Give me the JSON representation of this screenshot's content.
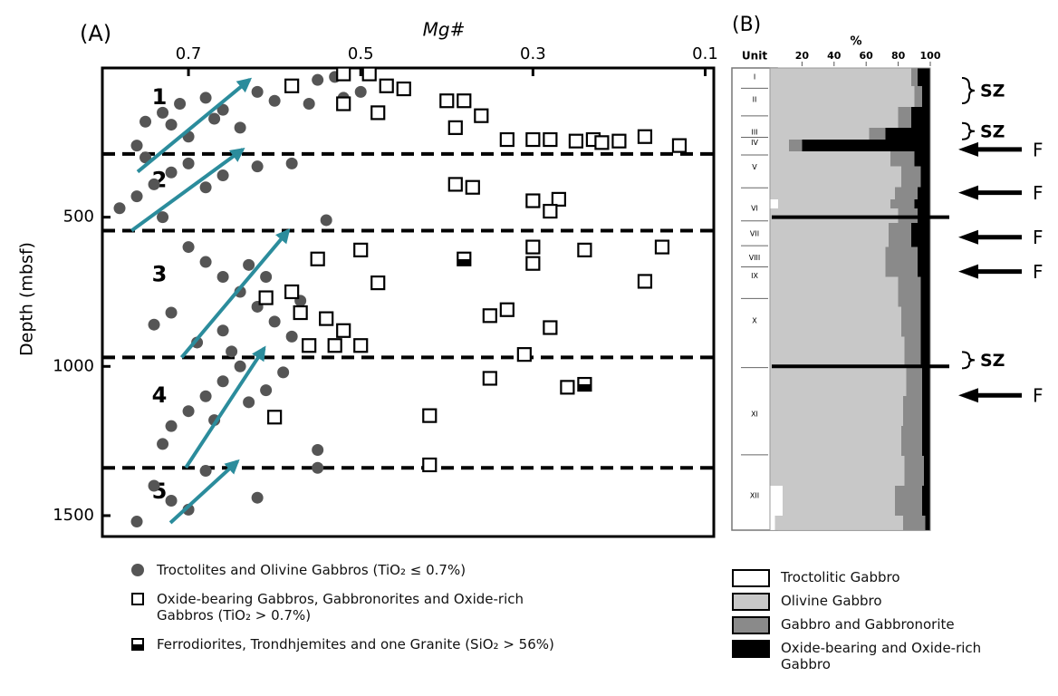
{
  "chart_data": [
    {
      "type": "scatter",
      "panel": "(A)",
      "xlabel": "Mg#",
      "ylabel": "Depth (mbsf)",
      "xlim": [
        0.8,
        0.09
      ],
      "xticks": [
        0.7,
        0.5,
        0.3,
        0.1
      ],
      "ylim": [
        0,
        1570
      ],
      "yticks": [
        500,
        1000,
        1500
      ],
      "boundaries": [
        288,
        545,
        970,
        1340
      ],
      "unit_labels": [
        "1",
        "2",
        "3",
        "4",
        "5"
      ],
      "trends": [
        {
          "x": [
            0.759,
            0.629
          ],
          "depth": [
            348,
            39
          ]
        },
        {
          "x": [
            0.766,
            0.637
          ],
          "depth": [
            545,
            273
          ]
        },
        {
          "x": [
            0.708,
            0.584
          ],
          "depth": [
            970,
            545
          ]
        },
        {
          "x": [
            0.703,
            0.612
          ],
          "depth": [
            1339,
            939
          ]
        },
        {
          "x": [
            0.721,
            0.643
          ],
          "depth": [
            1524,
            1318
          ]
        }
      ],
      "trend_color": "#2b8c9c",
      "series": [
        {
          "name": "Troctolites and Olivine Gabbros (TiO₂ ≤ 0.7%)",
          "marker": "circle",
          "color": "#555555",
          "x": [
            0.75,
            0.73,
            0.71,
            0.68,
            0.66,
            0.62,
            0.58,
            0.55,
            0.53,
            0.6,
            0.64,
            0.7,
            0.76,
            0.72,
            0.67,
            0.56,
            0.52,
            0.5,
            0.78,
            0.76,
            0.74,
            0.72,
            0.7,
            0.75,
            0.68,
            0.66,
            0.62,
            0.58,
            0.54,
            0.73,
            0.7,
            0.68,
            0.66,
            0.64,
            0.62,
            0.6,
            0.58,
            0.72,
            0.74,
            0.69,
            0.65,
            0.61,
            0.63,
            0.57,
            0.66,
            0.64,
            0.66,
            0.68,
            0.7,
            0.72,
            0.73,
            0.67,
            0.63,
            0.61,
            0.55,
            0.59,
            0.74,
            0.72,
            0.7,
            0.76,
            0.68,
            0.62,
            0.55
          ],
          "values": [
            180,
            150,
            120,
            100,
            140,
            80,
            60,
            40,
            30,
            110,
            200,
            230,
            260,
            190,
            170,
            120,
            100,
            80,
            470,
            430,
            390,
            350,
            320,
            300,
            400,
            360,
            330,
            320,
            510,
            500,
            600,
            650,
            700,
            750,
            800,
            850,
            900,
            820,
            860,
            920,
            950,
            700,
            660,
            780,
            880,
            1000,
            1050,
            1100,
            1150,
            1200,
            1260,
            1180,
            1120,
            1080,
            1280,
            1020,
            1400,
            1450,
            1480,
            1520,
            1350,
            1440,
            1340
          ]
        },
        {
          "name": "Oxide-bearing Gabbros, Gabbronorites and Oxide-rich Gabbros (TiO₂ > 0.7%)",
          "marker": "square",
          "color": "#000000",
          "x": [
            0.52,
            0.49,
            0.47,
            0.58,
            0.52,
            0.48,
            0.45,
            0.4,
            0.38,
            0.39,
            0.36,
            0.33,
            0.3,
            0.28,
            0.25,
            0.23,
            0.22,
            0.2,
            0.17,
            0.13,
            0.39,
            0.37,
            0.3,
            0.27,
            0.28,
            0.3,
            0.24,
            0.15,
            0.17,
            0.3,
            0.5,
            0.55,
            0.48,
            0.58,
            0.61,
            0.57,
            0.54,
            0.35,
            0.33,
            0.28,
            0.52,
            0.5,
            0.53,
            0.56,
            0.31,
            0.35,
            0.26,
            0.42,
            0.6,
            0.42
          ],
          "values": [
            20,
            20,
            60,
            60,
            120,
            150,
            70,
            110,
            110,
            200,
            160,
            240,
            240,
            240,
            245,
            240,
            250,
            245,
            230,
            260,
            390,
            400,
            445,
            440,
            480,
            600,
            610,
            600,
            715,
            655,
            610,
            640,
            720,
            750,
            770,
            820,
            840,
            830,
            810,
            870,
            880,
            930,
            930,
            930,
            960,
            1040,
            1070,
            1165,
            1170,
            1330
          ]
        },
        {
          "name": "Ferrodiorites, Trondhjemites and one Granite (SiO₂ > 56%)",
          "marker": "half-square",
          "color": "#000000",
          "x": [
            0.38,
            0.24
          ],
          "values": [
            640,
            1060
          ]
        }
      ]
    },
    {
      "type": "strip",
      "panel": "(B)",
      "unit_header": "Unit",
      "xlabel": "%",
      "xlim": [
        0,
        100
      ],
      "xticks": [
        20,
        40,
        60,
        80,
        100
      ],
      "bins": [
        0,
        60,
        130,
        200,
        240,
        280,
        330,
        400,
        440,
        470,
        520,
        600,
        700,
        800,
        900,
        1000,
        1100,
        1200,
        1300,
        1400,
        1500,
        1550
      ],
      "series": [
        {
          "name": "Troctolitic Gabbro",
          "color": "#ffffff",
          "values": [
            0,
            0,
            0,
            0,
            0,
            0,
            0,
            0,
            5,
            0,
            0,
            0,
            0,
            0,
            0,
            0,
            0,
            0,
            0,
            8,
            3
          ]
        },
        {
          "name": "Olivine Gabbro",
          "color": "#c8c8c8",
          "values": [
            88,
            90,
            80,
            62,
            12,
            75,
            82,
            78,
            70,
            80,
            74,
            72,
            80,
            82,
            84,
            85,
            83,
            82,
            84,
            70,
            80
          ]
        },
        {
          "name": "Gabbro and Gabbronorite",
          "color": "#8a8a8a",
          "values": [
            4,
            5,
            8,
            10,
            8,
            15,
            12,
            14,
            15,
            12,
            14,
            20,
            14,
            12,
            10,
            10,
            12,
            13,
            12,
            17,
            14
          ]
        },
        {
          "name": "Oxide-bearing and Oxide-rich Gabbro",
          "color": "#000000",
          "values": [
            8,
            5,
            12,
            28,
            80,
            10,
            6,
            8,
            10,
            8,
            12,
            8,
            6,
            6,
            6,
            5,
            5,
            5,
            4,
            5,
            3
          ]
        }
      ],
      "units": [
        {
          "label": "I",
          "depth": 30
        },
        {
          "label": "II",
          "depth": 106
        },
        {
          "label": "III",
          "depth": 215
        },
        {
          "label": "IV",
          "depth": 250
        },
        {
          "label": "V",
          "depth": 333
        },
        {
          "label": "VI",
          "depth": 470
        },
        {
          "label": "VII",
          "depth": 555
        },
        {
          "label": "VIII",
          "depth": 636
        },
        {
          "label": "IX",
          "depth": 697
        },
        {
          "label": "X",
          "depth": 848
        },
        {
          "label": "XI",
          "depth": 1160
        },
        {
          "label": "XII",
          "depth": 1433
        }
      ],
      "horizons": [
        500,
        1000
      ],
      "shear_zones": [
        {
          "label": "SZ",
          "depth": 76
        },
        {
          "label": "SZ",
          "depth": 212
        },
        {
          "label": "SZ",
          "depth": 979
        }
      ],
      "faults": [
        {
          "label": "F",
          "depth": 273
        },
        {
          "label": "F",
          "depth": 418
        },
        {
          "label": "F",
          "depth": 567
        },
        {
          "label": "F",
          "depth": 682
        },
        {
          "label": "F",
          "depth": 1097
        }
      ]
    }
  ]
}
